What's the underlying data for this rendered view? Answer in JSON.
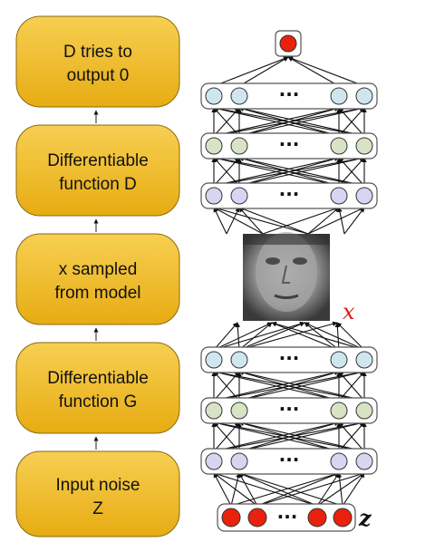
{
  "flow_boxes": [
    {
      "id": "d-output",
      "lines": [
        "D tries to",
        "output 0"
      ]
    },
    {
      "id": "function-d",
      "lines": [
        "Differentiable",
        "function D"
      ]
    },
    {
      "id": "x-sampled",
      "lines": [
        "x sampled",
        "from model"
      ]
    },
    {
      "id": "function-g",
      "lines": [
        "Differentiable",
        "function G"
      ]
    },
    {
      "id": "input-noise",
      "lines": [
        "Input noise",
        "Z"
      ]
    }
  ],
  "network": {
    "ellipsis": "···",
    "x_symbol": "x",
    "z_symbol": "z",
    "face_image": "grayscale face sample"
  },
  "colors": {
    "box_fill": "#f2bd2b",
    "box_stroke": "#8a6a10",
    "node_blue": "#cfe6ee",
    "node_green": "#d7e3c4",
    "node_purple": "#d6d5f2",
    "node_red": "#e8220c",
    "x_color": "#d81e1e"
  }
}
